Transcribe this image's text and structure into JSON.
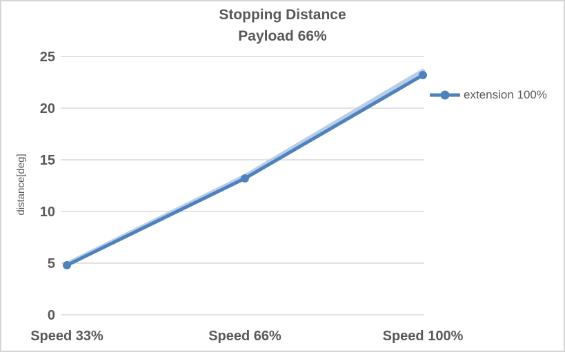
{
  "window": {
    "background": "#ffffff",
    "border_color": "#d5d5d5"
  },
  "title": {
    "line1": "Stopping Distance",
    "line2": "Payload 66%",
    "color": "#595959"
  },
  "legend": {
    "label": "extension 100%"
  },
  "colors": {
    "line": "#4f81bd",
    "halo": "#b8cde8",
    "gridline": "#d9d9d9",
    "text": "#595959"
  },
  "axes": {
    "y_title": "distance[deg]",
    "y_tick_labels": [
      "0",
      "5",
      "10",
      "15",
      "20",
      "25"
    ],
    "x_labels": [
      "Speed 33%",
      "Speed 66%",
      "Speed 100%"
    ]
  },
  "chart_data": {
    "type": "line",
    "title": "Stopping Distance Payload 66%",
    "categories": [
      "Speed 33%",
      "Speed 66%",
      "Speed 100%"
    ],
    "series": [
      {
        "name": "extension 100%",
        "values": [
          4.8,
          13.2,
          23.2
        ],
        "color": "#4f81bd",
        "marker": "circle",
        "role": "main"
      },
      {
        "name": "unlabeled-light-halo-line",
        "values": [
          4.9,
          13.4,
          23.6
        ],
        "color": "#b8cde8",
        "marker": "none",
        "role": "halo"
      }
    ],
    "xlabel": "",
    "ylabel": "distance[deg]",
    "ylim": [
      0,
      25
    ],
    "y_tick_interval": 5,
    "grid": "horizontal-only",
    "legend_position": "right-middle"
  }
}
